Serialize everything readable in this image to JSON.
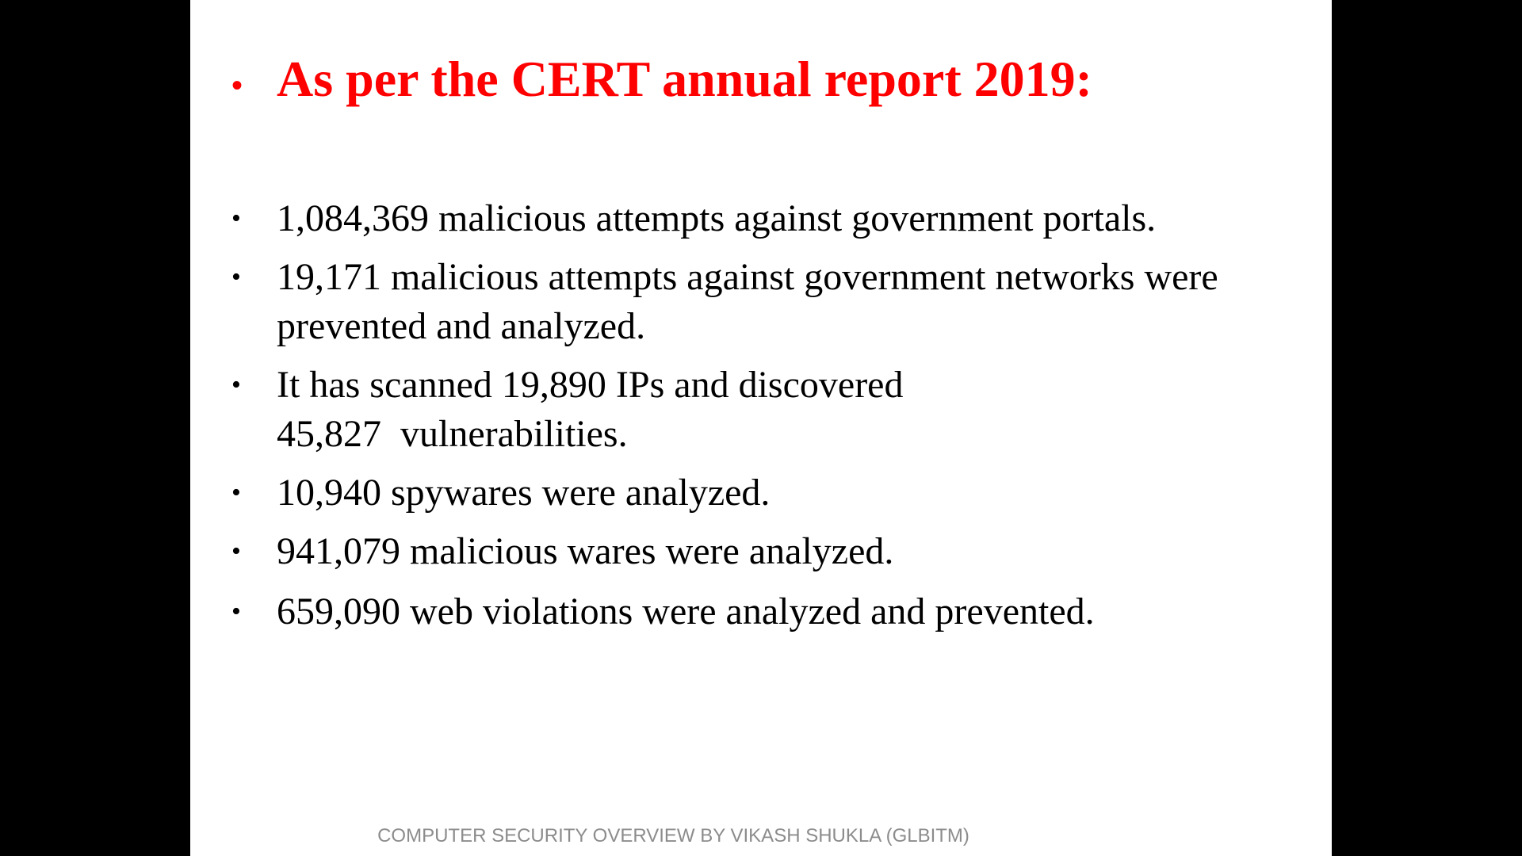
{
  "colors": {
    "page_background": "#000000",
    "slide_background": "#ffffff",
    "heading": "#ff0000",
    "body_text": "#000000",
    "footer_text": "#8c8c8c"
  },
  "slide": {
    "heading": {
      "bullet": "•",
      "text": "As per the CERT annual report 2019:"
    },
    "bullets": [
      {
        "symbol": "•",
        "lines": [
          "1,084,369 malicious attempts against government portals."
        ]
      },
      {
        "symbol": "•",
        "lines": [
          "19,171 malicious attempts against government networks were",
          "prevented and analyzed."
        ]
      },
      {
        "symbol": "•",
        "lines": [
          "It has scanned 19,890 IPs and discovered",
          "45,827  vulnerabilities."
        ]
      },
      {
        "symbol": "•",
        "lines": [
          "10,940 spywares were analyzed."
        ]
      },
      {
        "symbol": "•",
        "lines": [
          "941,079 malicious wares were analyzed."
        ]
      },
      {
        "symbol": "•",
        "lines": [
          "659,090 web violations were analyzed and prevented."
        ]
      }
    ],
    "footer": "COMPUTER SECURITY OVERVIEW BY VIKASH SHUKLA (GLBITM)"
  }
}
